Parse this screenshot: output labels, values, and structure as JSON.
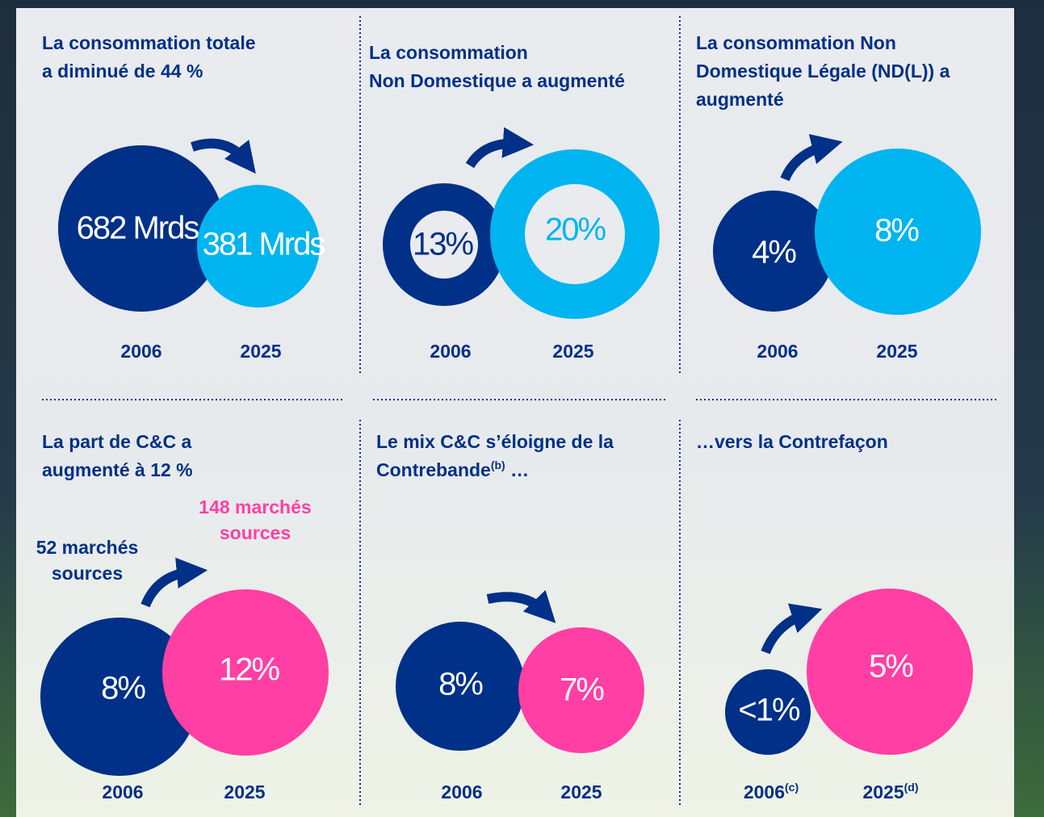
{
  "panels": [
    {
      "title": [
        "La consommation totale",
        "a diminué de 44 %"
      ],
      "circles": [
        {
          "label": "682 Mrds",
          "year": "2006",
          "color": "#003087"
        },
        {
          "label": "381 Mrds",
          "year": "2025",
          "color": "#00b5ef"
        }
      ]
    },
    {
      "title": [
        "La consommation",
        "Non Domestique a augmenté"
      ],
      "ring": true,
      "circles": [
        {
          "label": "13%",
          "year": "2006",
          "color": "#003087"
        },
        {
          "label": "20%",
          "year": "2025",
          "color": "#00b5ef"
        }
      ]
    },
    {
      "title": [
        "La consommation Non",
        "Domestique Légale (ND(L)) a",
        "augmenté"
      ],
      "circles": [
        {
          "label": "4%",
          "year": "2006",
          "color": "#003087"
        },
        {
          "label": "8%",
          "year": "2025",
          "color": "#00b5ef"
        }
      ]
    },
    {
      "title": [
        "La part de C&C a",
        "augmenté à 12 %"
      ],
      "sources": [
        {
          "lines": [
            "52 marchés",
            "sources"
          ],
          "color": "#003087"
        },
        {
          "lines": [
            "148 marchés",
            "sources"
          ],
          "color": "#ff3fa4"
        }
      ],
      "circles": [
        {
          "label": "8%",
          "year": "2006",
          "color": "#003087"
        },
        {
          "label": "12%",
          "year": "2025",
          "color": "#ff3fa4"
        }
      ]
    },
    {
      "title": [
        "Le mix C&C s’éloigne de la",
        "Contrebande"
      ],
      "title_sup": "(b)",
      "title_tail": " …",
      "circles": [
        {
          "label": "8%",
          "year": "2006",
          "color": "#003087"
        },
        {
          "label": "7%",
          "year": "2025",
          "color": "#ff3fa4"
        }
      ]
    },
    {
      "title": [
        "…vers la Contrefaçon"
      ],
      "circles": [
        {
          "label": "<1%",
          "year": "2006",
          "year_sup": "(c)",
          "color": "#003087"
        },
        {
          "label": "5%",
          "year": "2025",
          "year_sup": "(d)",
          "color": "#ff3fa4"
        }
      ]
    }
  ]
}
